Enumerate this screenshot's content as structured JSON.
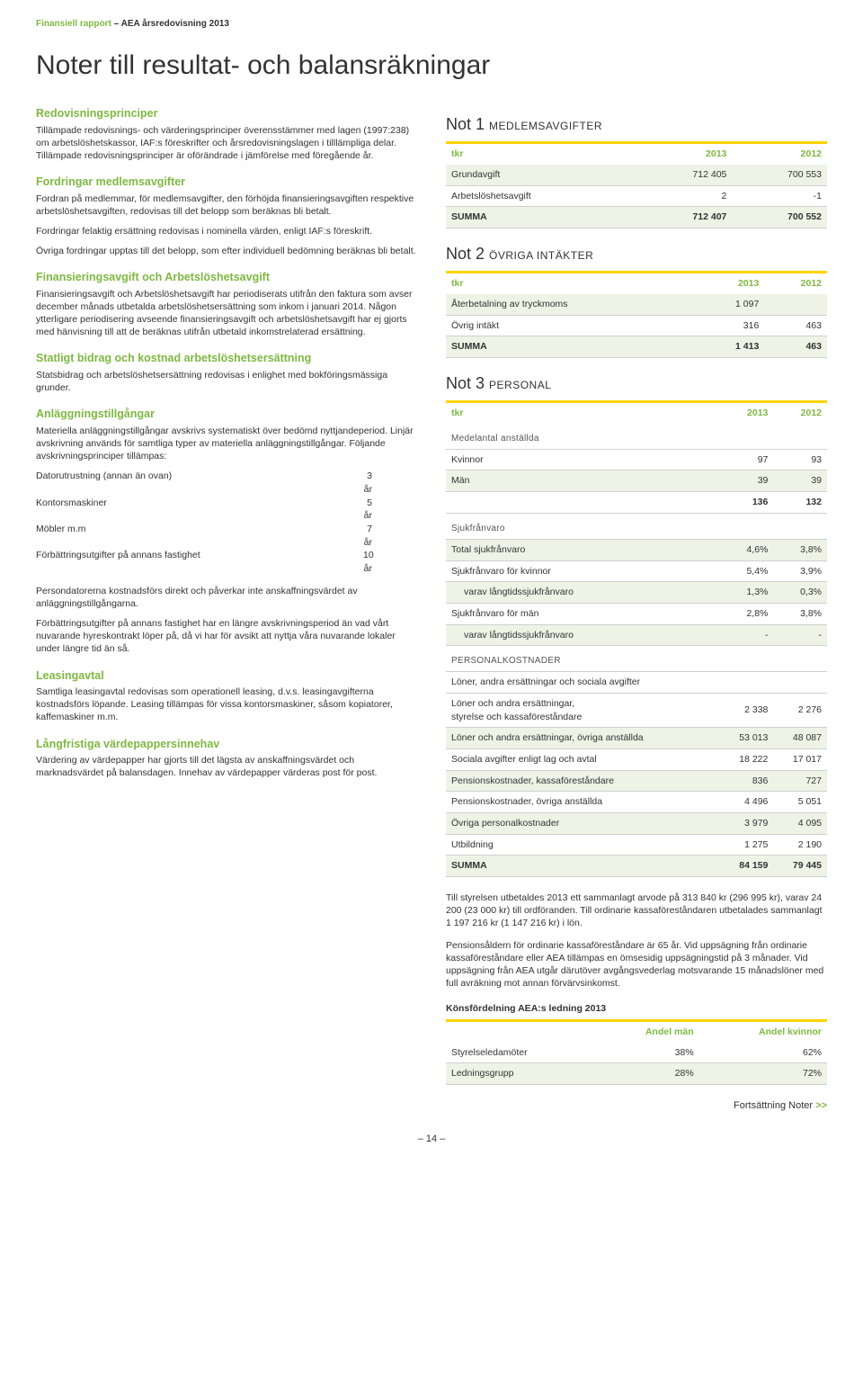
{
  "header": {
    "green": "Finansiell rapport",
    "sep": " – ",
    "dark": "AEA årsredovisning 2013"
  },
  "main_title": "Noter till resultat- och balansräkningar",
  "left": {
    "s1_head": "Redovisningsprinciper",
    "s1_body": "Tillämpade redovisnings- och värderingsprinciper överensstämmer med lagen (1997:238) om arbetslöshetskassor, IAF:s föreskrifter och årsredovisningslagen i tilllämpliga delar. Tillämpade redovisningsprinciper är oförändrade i jämförelse med föregående år.",
    "s2_head": "Fordringar medlemsavgifter",
    "s2_body": "Fordran på medlemmar, för medlemsavgifter, den förhöjda finansieringsavgiften respektive arbetslöshetsavgiften, redovisas till det belopp som beräknas bli betalt.",
    "s2_b2": "Fordringar felaktig ersättning redovisas i nominella värden, enligt IAF:s föreskrift.",
    "s2_b3": "Övriga fordringar upptas till det belopp, som efter individuell bedömning beräknas bli betalt.",
    "s3_head": "Finansieringsavgift och Arbetslöshetsavgift",
    "s3_body": "Finansieringsavgift och Arbetslöshetsavgift har periodiserats utifrån den faktura som avser december månads utbetalda arbetslöshetsersättning som inkom i januari 2014. Någon ytterligare periodisering avseende finansieringsavgift och arbetslöshetsavgift har ej gjorts med hänvisning till att de beräknas utifrån utbetald inkomstrelaterad ersättning.",
    "s4_head": "Statligt bidrag och kostnad arbetslöshetsersättning",
    "s4_body": "Statsbidrag och arbetslöshetsersättning redovisas i enlighet med bokföringsmässiga grunder.",
    "s5_head": "Anläggningstillgångar",
    "s5_body": "Materiella anläggningstillgångar avskrivs systematiskt över bedömd nyttjandeperiod. Linjär avskrivning används för samtliga typer av materiella anläggningstillgångar. Följande avskrivningsprinciper tillämpas:",
    "depr": [
      {
        "label": "Datorutrustning (annan än ovan)",
        "val": "3 år"
      },
      {
        "label": "Kontorsmaskiner",
        "val": "5 år"
      },
      {
        "label": "Möbler m.m",
        "val": "7 år"
      },
      {
        "label": "Förbättringsutgifter på annans fastighet",
        "val": "10 år"
      }
    ],
    "s5_b2": "Persondatorerna kostnadsförs direkt och påverkar inte anskaffningsvärdet av anläggningstillgångarna.",
    "s5_b3": "Förbättringsutgifter på annans fastighet har en längre avskrivningsperiod än vad vårt nuvarande hyreskontrakt löper på, då vi har för avsikt att nyttja våra nuvarande lokaler under längre tid än så.",
    "s6_head": "Leasingavtal",
    "s6_body": "Samtliga leasingavtal redovisas som operationell leasing, d.v.s. leasingavgifterna kostnadsförs löpande. Leasing tillämpas för vissa kontorsmaskiner, såsom kopiatorer, kaffemaskiner m.m.",
    "s7_head": "Långfristiga värdepappersinnehav",
    "s7_body": "Värdering av värdepapper har gjorts till det lägsta av anskaffningsvärdet och marknadsvärdet på balansdagen. Innehav av värdepapper värderas post för post."
  },
  "not1": {
    "title_num": "Not 1",
    "title_sub": "MEDLEMSAVGIFTER",
    "cols": [
      "tkr",
      "2013",
      "2012"
    ],
    "rows": [
      {
        "label": "Grundavgift",
        "a": "712 405",
        "b": "700 553",
        "shade": true
      },
      {
        "label": "Arbetslöshetsavgift",
        "a": "2",
        "b": "-1",
        "shade": false
      }
    ],
    "summa": {
      "label": "SUMMA",
      "a": "712 407",
      "b": "700 552"
    }
  },
  "not2": {
    "title_num": "Not 2",
    "title_sub": "ÖVRIGA INTÄKTER",
    "cols": [
      "tkr",
      "2013",
      "2012"
    ],
    "rows": [
      {
        "label": "Återbetalning av tryckmoms",
        "a": "1 097",
        "b": "",
        "shade": true
      },
      {
        "label": "Övrig intäkt",
        "a": "316",
        "b": "463",
        "shade": false
      }
    ],
    "summa": {
      "label": "SUMMA",
      "a": "1 413",
      "b": "463"
    }
  },
  "not3": {
    "title_num": "Not 3",
    "title_sub": "PERSONAL",
    "cols": [
      "tkr",
      "2013",
      "2012"
    ],
    "section1": "Medelantal anställda",
    "s1rows": [
      {
        "label": "Kvinnor",
        "a": "97",
        "b": "93",
        "shade": false
      },
      {
        "label": "Män",
        "a": "39",
        "b": "39",
        "shade": true
      }
    ],
    "s1total": {
      "a": "136",
      "b": "132"
    },
    "section2": "Sjukfrånvaro",
    "s2rows": [
      {
        "label": "Total sjukfrånvaro",
        "a": "4,6%",
        "b": "3,8%",
        "shade": true
      },
      {
        "label": "Sjukfrånvaro för kvinnor",
        "a": "5,4%",
        "b": "3,9%",
        "shade": false
      },
      {
        "label": "varav långtidssjukfrånvaro",
        "a": "1,3%",
        "b": "0,3%",
        "shade": true,
        "indent": true
      },
      {
        "label": "Sjukfrånvaro för män",
        "a": "2,8%",
        "b": "3,8%",
        "shade": false
      },
      {
        "label": "varav långtidssjukfrånvaro",
        "a": "-",
        "b": "-",
        "shade": true,
        "indent": true
      }
    ],
    "section3": "PERSONALKOSTNADER",
    "section3b": "Löner, andra ersättningar och sociala avgifter",
    "s3rows": [
      {
        "label": "Löner och andra ersättningar,\nstyrelse och kassaföreståndare",
        "a": "2 338",
        "b": "2 276",
        "shade": false,
        "multiline": true
      },
      {
        "label": "Löner och andra ersättningar, övriga anställda",
        "a": "53 013",
        "b": "48 087",
        "shade": true
      },
      {
        "label": "Sociala avgifter enligt lag och avtal",
        "a": "18 222",
        "b": "17 017",
        "shade": false
      },
      {
        "label": "Pensionskostnader, kassaföreståndare",
        "a": "836",
        "b": "727",
        "shade": true
      },
      {
        "label": "Pensionskostnader, övriga anställda",
        "a": "4 496",
        "b": "5 051",
        "shade": false
      },
      {
        "label": "Övriga personalkostnader",
        "a": "3 979",
        "b": "4 095",
        "shade": true
      },
      {
        "label": "Utbildning",
        "a": "1 275",
        "b": "2 190",
        "shade": false
      }
    ],
    "s3summa": {
      "label": "SUMMA",
      "a": "84 159",
      "b": "79 445"
    }
  },
  "foot": {
    "p1": "Till styrelsen utbetaldes 2013 ett sammanlagt arvode på 313 840 kr (296 995 kr), varav 24 200 (23 000 kr) till ordföranden. Till ordinarie kassaföreståndaren utbetalades sammanlagt 1 197 216 kr (1 147 216 kr) i lön.",
    "p2": "Pensionsåldern för ordinarie kassaföreståndare är 65 år. Vid uppsägning från ordinarie kassaföreståndare eller AEA tillämpas en ömsesidig uppsägningstid på 3 månader. Vid uppsägning från AEA utgår därutöver avgångsvederlag motsvarande 15 månadslöner med full avräkning mot annan förvärvsinkomst.",
    "konsf_title": "Könsfördelning AEA:s ledning 2013",
    "konsf_cols": [
      "",
      "Andel män",
      "Andel kvinnor"
    ],
    "konsf_rows": [
      {
        "label": "Styrelseledamöter",
        "a": "38%",
        "b": "62%",
        "shade": false
      },
      {
        "label": "Ledningsgrupp",
        "a": "28%",
        "b": "72%",
        "shade": true
      }
    ]
  },
  "forts": "Fortsättning Noter",
  "page": "– 14 –",
  "colors": {
    "green": "#7fb842",
    "yellow": "#ffd400",
    "shade": "#eef3e6"
  }
}
